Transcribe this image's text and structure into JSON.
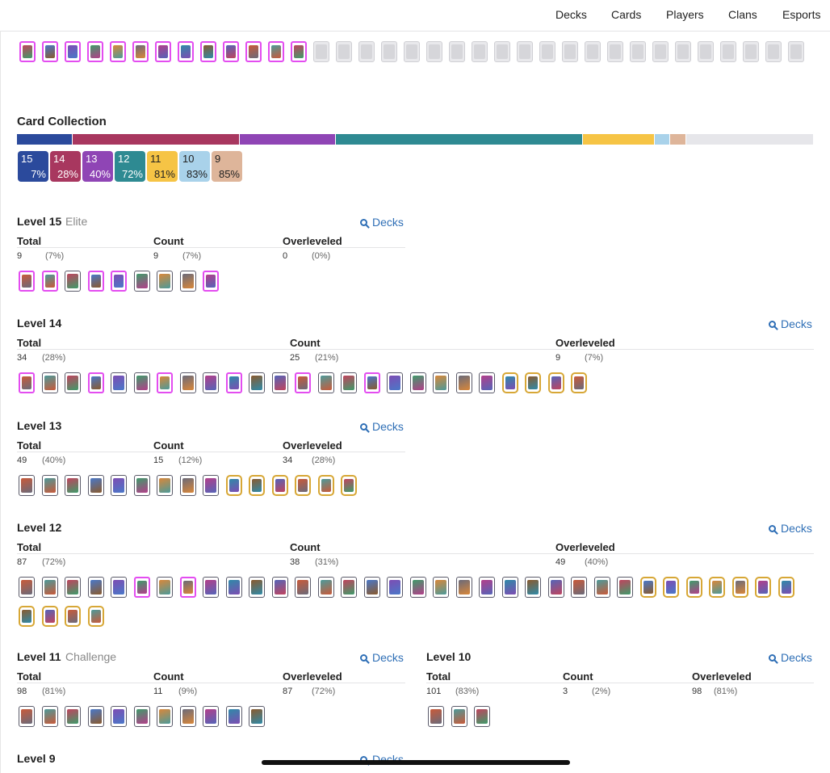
{
  "nav": {
    "items": [
      "Decks",
      "Cards",
      "Players",
      "Clans",
      "Esports"
    ]
  },
  "collection": {
    "title": "Card Collection",
    "badges": [
      {
        "level": "15",
        "pct": "7%",
        "color": "#2b4a9c",
        "text": "#ffffff"
      },
      {
        "level": "14",
        "pct": "28%",
        "color": "#a8375f",
        "text": "#ffffff"
      },
      {
        "level": "13",
        "pct": "40%",
        "color": "#8f45b5",
        "text": "#ffffff"
      },
      {
        "level": "12",
        "pct": "72%",
        "color": "#2e8a92",
        "text": "#ffffff"
      },
      {
        "level": "11",
        "pct": "81%",
        "color": "#f6c445",
        "text": "#222222"
      },
      {
        "level": "10",
        "pct": "83%",
        "color": "#a9d2ea",
        "text": "#222222"
      },
      {
        "level": "9",
        "pct": "85%",
        "color": "#deb59a",
        "text": "#222222"
      }
    ],
    "bar_segments": [
      {
        "level": "15",
        "fraction": 0.07,
        "color": "#2b4a9c"
      },
      {
        "level": "14",
        "fraction": 0.21,
        "color": "#a8375f"
      },
      {
        "level": "13",
        "fraction": 0.12,
        "color": "#8f45b5"
      },
      {
        "level": "12",
        "fraction": 0.31,
        "color": "#2e8a92"
      },
      {
        "level": "11",
        "fraction": 0.09,
        "color": "#f6c445"
      },
      {
        "level": "10",
        "fraction": 0.02,
        "color": "#a9d2ea"
      },
      {
        "level": "9",
        "fraction": 0.02,
        "color": "#deb59a"
      },
      {
        "level": "missing",
        "fraction": 0.16,
        "color": "#e6e6ea"
      }
    ]
  },
  "top_cards": {
    "unlocked": 13,
    "locked": 22,
    "icon": "card-icon"
  },
  "levels": [
    {
      "id": "lv15",
      "title": "Level 15",
      "subtitle": "Elite",
      "decks": "Decks",
      "headers": [
        "Total",
        "Count",
        "Overleveled"
      ],
      "total": "9",
      "total_pct": "(7%)",
      "count": "9",
      "count_pct": "(7%)",
      "over": "0",
      "over_pct": "(0%)",
      "cards": 9
    },
    {
      "id": "lv14",
      "title": "Level 14",
      "subtitle": "",
      "decks": "Decks",
      "headers": [
        "Total",
        "Count",
        "Overleveled"
      ],
      "total": "34",
      "total_pct": "(28%)",
      "count": "25",
      "count_pct": "(21%)",
      "over": "9",
      "over_pct": "(7%)",
      "cards": 25
    },
    {
      "id": "lv13",
      "title": "Level 13",
      "subtitle": "",
      "decks": "Decks",
      "headers": [
        "Total",
        "Count",
        "Overleveled"
      ],
      "total": "49",
      "total_pct": "(40%)",
      "count": "15",
      "count_pct": "(12%)",
      "over": "34",
      "over_pct": "(28%)",
      "cards": 15
    },
    {
      "id": "lv12",
      "title": "Level 12",
      "subtitle": "",
      "decks": "Decks",
      "headers": [
        "Total",
        "Count",
        "Overleveled"
      ],
      "total": "87",
      "total_pct": "(72%)",
      "count": "38",
      "count_pct": "(31%)",
      "over": "49",
      "over_pct": "(40%)",
      "cards": 38
    },
    {
      "id": "lv11",
      "title": "Level 11",
      "subtitle": "Challenge",
      "decks": "Decks",
      "headers": [
        "Total",
        "Count",
        "Overleveled"
      ],
      "total": "98",
      "total_pct": "(81%)",
      "count": "11",
      "count_pct": "(9%)",
      "over": "87",
      "over_pct": "(72%)",
      "cards": 11
    },
    {
      "id": "lv10",
      "title": "Level 10",
      "subtitle": "",
      "decks": "Decks",
      "headers": [
        "Total",
        "Count",
        "Overleveled"
      ],
      "total": "101",
      "total_pct": "(83%)",
      "count": "3",
      "count_pct": "(2%)",
      "over": "98",
      "over_pct": "(81%)",
      "cards": 3
    },
    {
      "id": "lv9",
      "title": "Level 9",
      "subtitle": "",
      "decks": "Decks"
    }
  ]
}
